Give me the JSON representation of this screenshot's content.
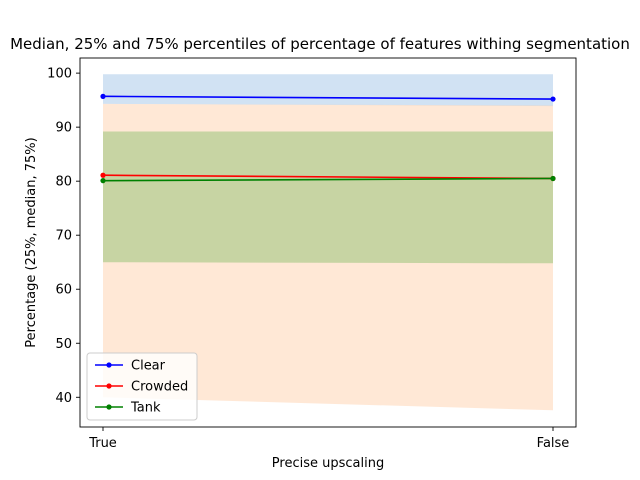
{
  "chart_data": {
    "type": "line",
    "title": "Median, 25% and 75% percentiles of percentage of features withing segmentation",
    "xlabel": "Precise upscaling",
    "ylabel": "Percentage (25%, median, 75%)",
    "categories": [
      "True",
      "False"
    ],
    "ylim": [
      34.5,
      102.8
    ],
    "yticks": [
      40,
      50,
      60,
      70,
      80,
      90,
      100
    ],
    "grid": false,
    "legend_position": "lower-left",
    "series": [
      {
        "name": "Clear",
        "color": "#0000ff",
        "band_color": "#a4c6e8",
        "median": [
          95.7,
          95.2
        ],
        "p25": [
          94.3,
          93.9
        ],
        "p75": [
          99.8,
          99.8
        ]
      },
      {
        "name": "Crowded",
        "color": "#ff0000",
        "band_color": "#ffd2ad",
        "median": [
          81.1,
          80.5
        ],
        "p25": [
          40.0,
          37.6
        ],
        "p75": [
          94.3,
          94.0
        ]
      },
      {
        "name": "Tank",
        "color": "#008000",
        "band_color": "#8fbf70",
        "median": [
          80.1,
          80.5
        ],
        "p25": [
          65.0,
          64.8
        ],
        "p75": [
          89.2,
          89.2
        ]
      }
    ]
  }
}
